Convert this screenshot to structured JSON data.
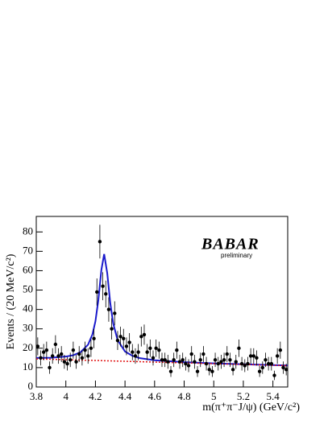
{
  "chart_data": {
    "type": "errorbar",
    "x_label": "m(π⁺π⁻J/ψ) (GeV/c²)",
    "y_label": "Events / (20 MeV/c²)",
    "logo": "BABAR",
    "logo_note": "preliminary",
    "color": "#000000",
    "x": [
      3.81,
      3.83,
      3.85,
      3.87,
      3.89,
      3.91,
      3.93,
      3.95,
      3.97,
      3.99,
      4.01,
      4.03,
      4.05,
      4.07,
      4.09,
      4.11,
      4.13,
      4.15,
      4.17,
      4.19,
      4.21,
      4.23,
      4.25,
      4.27,
      4.29,
      4.31,
      4.33,
      4.35,
      4.37,
      4.39,
      4.41,
      4.43,
      4.45,
      4.47,
      4.49,
      4.51,
      4.53,
      4.55,
      4.57,
      4.59,
      4.61,
      4.63,
      4.65,
      4.67,
      4.69,
      4.71,
      4.73,
      4.75,
      4.77,
      4.79,
      4.81,
      4.83,
      4.85,
      4.87,
      4.89,
      4.91,
      4.93,
      4.95,
      4.97,
      4.99,
      5.01,
      5.03,
      5.05,
      5.07,
      5.09,
      5.11,
      5.13,
      5.15,
      5.17,
      5.19,
      5.21,
      5.23,
      5.25,
      5.27,
      5.29,
      5.31,
      5.33,
      5.35,
      5.37,
      5.39,
      5.41,
      5.43,
      5.45,
      5.47,
      5.49
    ],
    "values": [
      21,
      15,
      18,
      19,
      10,
      16,
      22,
      16,
      17,
      13,
      12,
      14,
      19,
      13,
      17,
      15,
      19,
      16,
      20,
      25,
      49,
      75,
      52,
      48,
      40,
      30,
      38,
      24,
      26,
      25,
      21,
      23,
      18,
      16,
      18,
      26,
      27,
      18,
      20,
      15,
      20,
      19,
      14,
      14,
      13,
      8,
      14,
      19,
      13,
      14,
      12,
      11,
      17,
      13,
      8,
      14,
      17,
      12,
      9,
      8,
      14,
      12,
      13,
      14,
      17,
      14,
      9,
      13,
      20,
      12,
      11,
      12,
      16,
      16,
      15,
      8,
      10,
      14,
      12,
      12,
      6,
      16,
      19,
      10,
      9
    ],
    "errors": [
      4.6,
      3.9,
      4.2,
      4.4,
      3.2,
      4,
      4.7,
      4,
      4.1,
      3.6,
      3.5,
      3.7,
      4.4,
      3.6,
      4.1,
      3.9,
      4.4,
      4,
      4.5,
      5,
      7,
      8.7,
      7.2,
      6.9,
      6.3,
      5.5,
      6.2,
      4.9,
      5.1,
      5,
      4.6,
      4.8,
      4.2,
      4,
      4.2,
      5.1,
      5.2,
      4.2,
      4.5,
      3.9,
      4.5,
      4.4,
      3.7,
      3.7,
      3.6,
      2.8,
      3.7,
      4.4,
      3.6,
      3.7,
      3.5,
      3.3,
      4.1,
      3.6,
      2.8,
      3.7,
      4.1,
      3.5,
      3,
      2.8,
      3.7,
      3.5,
      3.6,
      3.7,
      4.1,
      3.7,
      3,
      3.6,
      4.5,
      3.5,
      3.3,
      3.5,
      4,
      4,
      3.9,
      2.8,
      3.2,
      3.7,
      3.5,
      3.5,
      2.4,
      4,
      4.4,
      3.2,
      3
    ],
    "lines": [
      {
        "color": "#1a1acc",
        "style": "solid",
        "x": [
          3.8,
          3.9,
          4.0,
          4.05,
          4.1,
          4.15,
          4.18,
          4.2,
          4.22,
          4.24,
          4.259,
          4.28,
          4.3,
          4.32,
          4.35,
          4.4,
          4.45,
          4.5,
          4.6,
          4.8,
          5.0,
          5.2,
          5.5
        ],
        "values": [
          15.0,
          15.1,
          15.7,
          16.4,
          18.0,
          21.8,
          27.2,
          33.9,
          45.0,
          60.3,
          68.6,
          58.7,
          43.5,
          32.8,
          24.2,
          18.3,
          16.1,
          14.9,
          13.8,
          12.8,
          12.2,
          11.7,
          11.1
        ]
      },
      {
        "color": "#e01010",
        "style": "dotted",
        "x": [
          3.8,
          5.5
        ],
        "values": [
          14.5,
          11.0
        ]
      }
    ],
    "xlim": [
      3.8,
      5.5
    ],
    "ylim": [
      0,
      88
    ],
    "xticks": [
      3.8,
      4,
      4.2,
      4.4,
      4.6,
      4.8,
      5,
      5.2,
      5.4
    ],
    "yticks": [
      0,
      10,
      20,
      30,
      40,
      50,
      60,
      70,
      80
    ]
  }
}
